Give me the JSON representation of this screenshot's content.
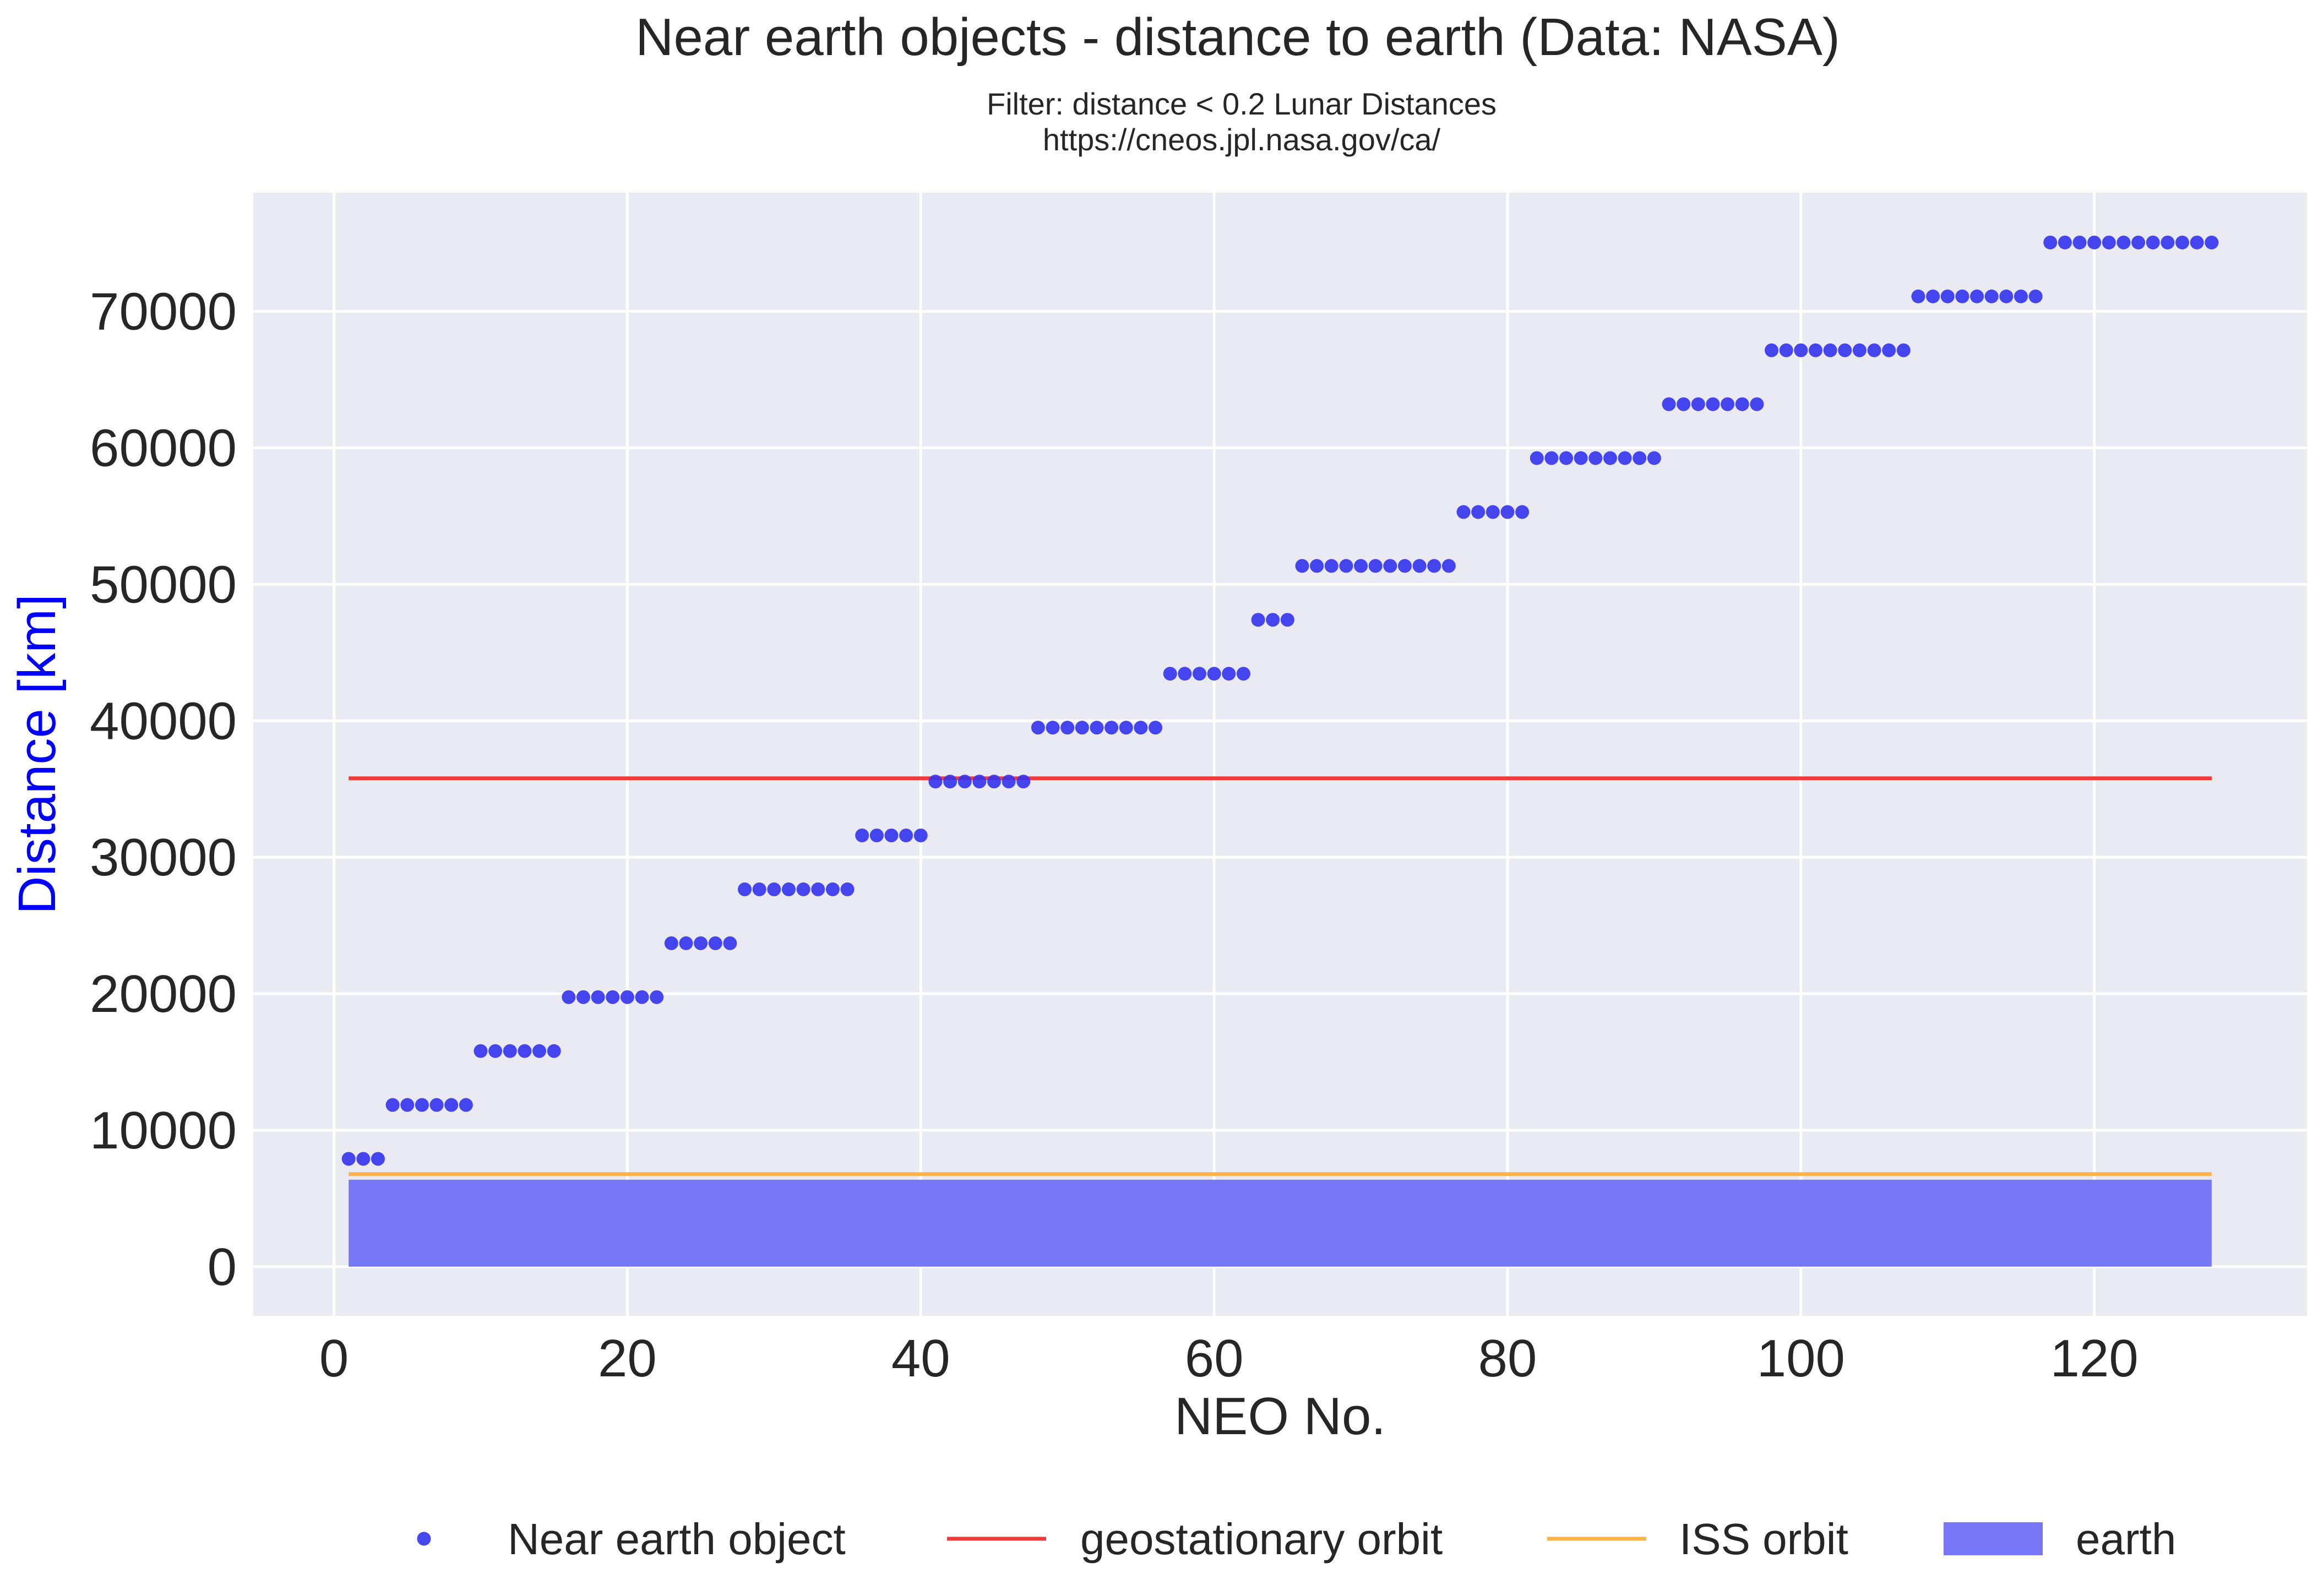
{
  "chart_data": {
    "type": "scatter",
    "title": "Near earth objects - distance to earth (Data: NASA)",
    "subtitle_lines": [
      "Filter: distance < 0.2 Lunar Distances",
      "https://cneos.jpl.nasa.gov/ca/"
    ],
    "xlabel": "NEO No.",
    "ylabel": "Distance [km]",
    "xlim": [
      -5.5,
      134.5
    ],
    "ylim": [
      -3600,
      78700
    ],
    "xticks": [
      0,
      20,
      40,
      60,
      80,
      100,
      120
    ],
    "yticks": [
      0,
      10000,
      20000,
      30000,
      40000,
      50000,
      60000,
      70000
    ],
    "grid": true,
    "legend_position": "bottom",
    "groups": [
      {
        "start": 1,
        "end": 3,
        "y": 7900
      },
      {
        "start": 4,
        "end": 9,
        "y": 11850
      },
      {
        "start": 10,
        "end": 15,
        "y": 15800
      },
      {
        "start": 16,
        "end": 22,
        "y": 19750
      },
      {
        "start": 23,
        "end": 27,
        "y": 23700
      },
      {
        "start": 28,
        "end": 35,
        "y": 27650
      },
      {
        "start": 36,
        "end": 40,
        "y": 31600
      },
      {
        "start": 41,
        "end": 47,
        "y": 35550
      },
      {
        "start": 48,
        "end": 56,
        "y": 39500
      },
      {
        "start": 57,
        "end": 62,
        "y": 43450
      },
      {
        "start": 63,
        "end": 65,
        "y": 47400
      },
      {
        "start": 66,
        "end": 76,
        "y": 51350
      },
      {
        "start": 77,
        "end": 81,
        "y": 55300
      },
      {
        "start": 82,
        "end": 90,
        "y": 59250
      },
      {
        "start": 91,
        "end": 97,
        "y": 63200
      },
      {
        "start": 98,
        "end": 107,
        "y": 67150
      },
      {
        "start": 108,
        "end": 116,
        "y": 71100
      },
      {
        "start": 117,
        "end": 128,
        "y": 75050
      }
    ],
    "series": [
      {
        "name": "Near earth object",
        "kind": "scatter",
        "color": "#3333ee"
      },
      {
        "name": "geostationary orbit",
        "kind": "line",
        "x": [
          1,
          128
        ],
        "y": 35786,
        "color": "#ee3b3b"
      },
      {
        "name": "ISS orbit",
        "kind": "line",
        "x": [
          1,
          128
        ],
        "y": 6780,
        "color": "#ffb347"
      },
      {
        "name": "earth",
        "kind": "area",
        "x": [
          1,
          128
        ],
        "y": [
          0,
          6371
        ],
        "color": "#7777f7"
      }
    ],
    "colors": {
      "plot_background": "#eaeaf2",
      "grid": "#ffffff",
      "text": "#262626",
      "ylabel": "#0000ff"
    }
  }
}
